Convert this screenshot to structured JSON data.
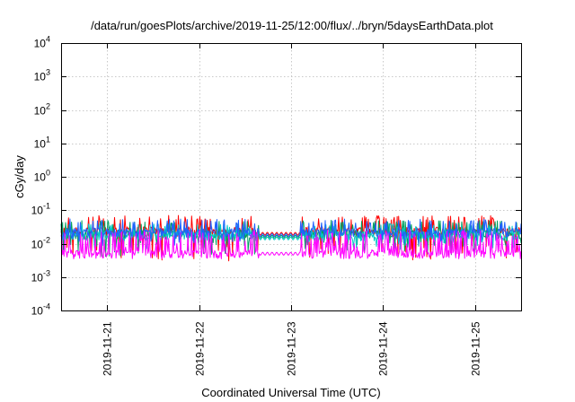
{
  "chart_data": {
    "type": "line",
    "title": "/data/run/goesPlots/archive/2019-11-25/12:00/flux/../bryn/5daysEarthData.plot",
    "xlabel": "Coordinated Universal Time (UTC)",
    "ylabel": "cGy/day",
    "yscale": "log",
    "ylim": [
      0.0001,
      10000
    ],
    "y_ticks": [
      {
        "base": "10",
        "exp": "-4",
        "value": 0.0001
      },
      {
        "base": "10",
        "exp": "-3",
        "value": 0.001
      },
      {
        "base": "10",
        "exp": "-2",
        "value": 0.01
      },
      {
        "base": "10",
        "exp": "-1",
        "value": 0.1
      },
      {
        "base": "10",
        "exp": "0",
        "value": 1
      },
      {
        "base": "10",
        "exp": "1",
        "value": 10
      },
      {
        "base": "10",
        "exp": "2",
        "value": 100
      },
      {
        "base": "10",
        "exp": "3",
        "value": 1000
      },
      {
        "base": "10",
        "exp": "4",
        "value": 10000
      }
    ],
    "xlim": [
      "2019-11-20 12:00",
      "2019-11-25 12:00"
    ],
    "x_ticks": [
      {
        "label": "2019-11-21",
        "value": "2019-11-21 00:00"
      },
      {
        "label": "2019-11-22",
        "value": "2019-11-22 00:00"
      },
      {
        "label": "2019-11-23",
        "value": "2019-11-23 00:00"
      },
      {
        "label": "2019-11-24",
        "value": "2019-11-24 00:00"
      },
      {
        "label": "2019-11-25",
        "value": "2019-11-25 00:00"
      }
    ],
    "grid": true,
    "series": [
      {
        "color": "#ff0000",
        "values_approx": {
          "baseline": 0.022,
          "spike_max": 0.07,
          "min": 0.003
        }
      },
      {
        "color": "#00a060",
        "values_approx": {
          "baseline": 0.018,
          "spike_max": 0.05,
          "min": 0.004
        }
      },
      {
        "color": "#00c8c8",
        "values_approx": {
          "baseline": 0.016,
          "spike_max": 0.04,
          "min": 0.006
        }
      },
      {
        "color": "#2060ff",
        "values_approx": {
          "baseline": 0.02,
          "spike_max": 0.055,
          "min": 0.008
        }
      },
      {
        "color": "#ff00ff",
        "values_approx": {
          "baseline": 0.005,
          "spike_max": 0.025,
          "min": 0.0035
        }
      }
    ]
  }
}
